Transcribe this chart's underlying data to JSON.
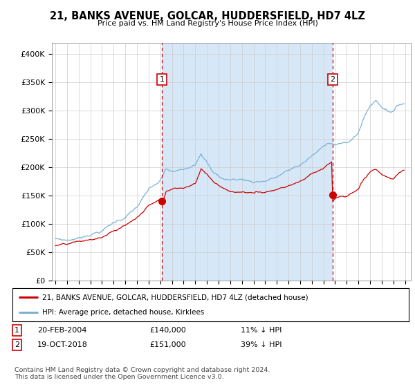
{
  "title": "21, BANKS AVENUE, GOLCAR, HUDDERSFIELD, HD7 4LZ",
  "subtitle": "Price paid vs. HM Land Registry's House Price Index (HPI)",
  "ylim": [
    0,
    420000
  ],
  "xlim_start": 1994.7,
  "xlim_end": 2025.5,
  "fig_bg_color": "#ffffff",
  "plot_bg_color": "#ffffff",
  "shade_color": "#d6e8f7",
  "sale1_x": 2004.13,
  "sale1_y": 140000,
  "sale2_x": 2018.8,
  "sale2_y": 151000,
  "line_color_red": "#cc0000",
  "line_color_blue": "#7ab0d4",
  "grid_color": "#cccccc",
  "legend_label_red": "21, BANKS AVENUE, GOLCAR, HUDDERSFIELD, HD7 4LZ (detached house)",
  "legend_label_blue": "HPI: Average price, detached house, Kirklees",
  "footnote": "Contains HM Land Registry data © Crown copyright and database right 2024.\nThis data is licensed under the Open Government Licence v3.0.",
  "sale1_date": "20-FEB-2004",
  "sale1_price": "£140,000",
  "sale1_hpi": "11% ↓ HPI",
  "sale2_date": "19-OCT-2018",
  "sale2_price": "£151,000",
  "sale2_hpi": "39% ↓ HPI",
  "xticks": [
    1995,
    1996,
    1997,
    1998,
    1999,
    2000,
    2001,
    2002,
    2003,
    2004,
    2005,
    2006,
    2007,
    2008,
    2009,
    2010,
    2011,
    2012,
    2013,
    2014,
    2015,
    2016,
    2017,
    2018,
    2019,
    2020,
    2021,
    2022,
    2023,
    2024,
    2025
  ],
  "yticks": [
    0,
    50000,
    100000,
    150000,
    200000,
    250000,
    300000,
    350000,
    400000
  ],
  "ytick_labels": [
    "£0",
    "£50K",
    "£100K",
    "£150K",
    "£200K",
    "£250K",
    "£300K",
    "£350K",
    "£400K"
  ]
}
